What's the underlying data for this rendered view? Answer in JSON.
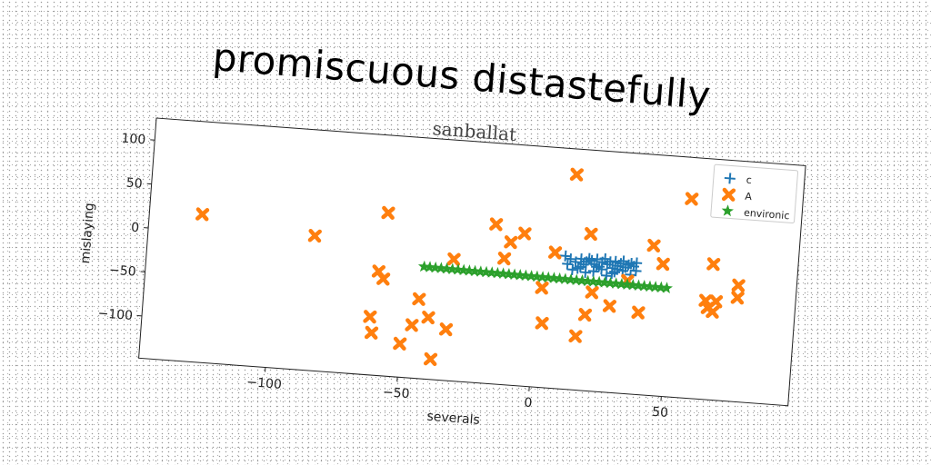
{
  "headline": "promiscuous distastefully",
  "chart_data": {
    "type": "scatter",
    "title": "sanballat",
    "xlabel": "severals",
    "ylabel": "mislaying",
    "xlim": [
      -148,
      98
    ],
    "ylim": [
      -148,
      125
    ],
    "xticks": [
      -100,
      -50,
      0,
      50
    ],
    "yticks": [
      -100,
      -50,
      0,
      50,
      100
    ],
    "grid": false,
    "legend_position": "top-right",
    "series": [
      {
        "name": "c",
        "marker": "plus",
        "color": "#1f77b4",
        "points": [
          [
            10,
            3
          ],
          [
            12,
            0
          ],
          [
            14,
            -3
          ],
          [
            16,
            1
          ],
          [
            17,
            -5
          ],
          [
            18,
            -2
          ],
          [
            19,
            2
          ],
          [
            20,
            0
          ],
          [
            21,
            -4
          ],
          [
            22,
            2
          ],
          [
            23,
            -6
          ],
          [
            24,
            -1
          ],
          [
            25,
            3
          ],
          [
            26,
            -3
          ],
          [
            27,
            0
          ],
          [
            28,
            -7
          ],
          [
            29,
            1
          ],
          [
            30,
            -4
          ],
          [
            31,
            -1
          ],
          [
            32,
            2
          ],
          [
            33,
            -5
          ],
          [
            34,
            -2
          ],
          [
            35,
            0
          ],
          [
            36,
            -3
          ],
          [
            37,
            1
          ],
          [
            13,
            -12
          ],
          [
            15,
            -10
          ],
          [
            18,
            -14
          ],
          [
            21,
            -12
          ],
          [
            24,
            -9
          ],
          [
            26,
            -16
          ],
          [
            29,
            -11
          ],
          [
            32,
            -9
          ],
          [
            35,
            -13
          ],
          [
            37,
            -8
          ],
          [
            16,
            -8
          ],
          [
            22,
            -7
          ],
          [
            28,
            -13
          ],
          [
            30,
            -8
          ],
          [
            11,
            -6
          ]
        ]
      },
      {
        "name": "A",
        "marker": "x",
        "color": "#ff7f0e",
        "points": [
          [
            -128,
            20
          ],
          [
            -85,
            5
          ],
          [
            -58,
            37
          ],
          [
            -60,
            -30
          ],
          [
            -58,
            -38
          ],
          [
            -62,
            -82
          ],
          [
            -61,
            -100
          ],
          [
            -40,
            -78
          ],
          [
            -44,
            -58
          ],
          [
            -46,
            -88
          ],
          [
            -50,
            -110
          ],
          [
            -38,
            -125
          ],
          [
            -33,
            -90
          ],
          [
            -32,
            -10
          ],
          [
            -17,
            33
          ],
          [
            -13,
            -5
          ],
          [
            -11,
            14
          ],
          [
            -6,
            25
          ],
          [
            2,
            -35
          ],
          [
            3,
            -75
          ],
          [
            6,
            6
          ],
          [
            12,
            96
          ],
          [
            16,
            -87
          ],
          [
            19,
            -62
          ],
          [
            19,
            30
          ],
          [
            21,
            -36
          ],
          [
            28,
            -50
          ],
          [
            34,
            -20
          ],
          [
            39,
            -55
          ],
          [
            43,
            22
          ],
          [
            47,
            2
          ],
          [
            56,
            78
          ],
          [
            64,
            -36
          ],
          [
            65,
            -44
          ],
          [
            67,
            -48
          ],
          [
            66,
            6
          ],
          [
            68,
            -36
          ],
          [
            76,
            -16
          ],
          [
            76,
            -30
          ]
        ]
      },
      {
        "name": "environic",
        "marker": "star",
        "color": "#2ca02c",
        "x_start": -43,
        "x_end": 49,
        "y_start": -21,
        "y_end": -25,
        "count": 44
      }
    ]
  }
}
